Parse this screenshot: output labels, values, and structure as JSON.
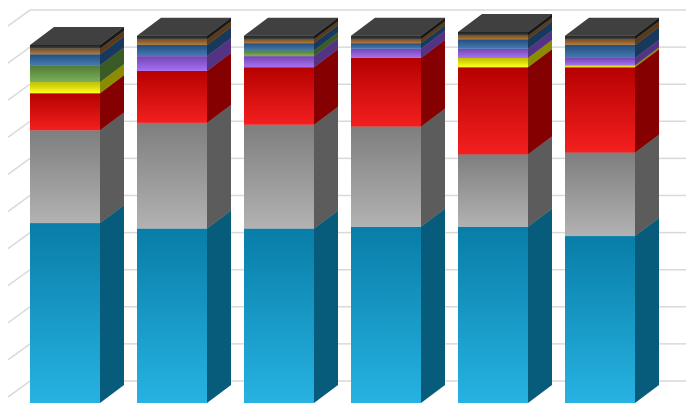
{
  "chart_data": {
    "type": "bar",
    "stacked": true,
    "style": "3d",
    "grid": true,
    "legend": "none",
    "ylim": [
      0,
      100
    ],
    "categories": [
      "",
      "",
      "",
      "",
      "",
      ""
    ],
    "series": [
      {
        "color": "#0aa7de",
        "values": [
          48.5,
          47.0,
          47.0,
          47.5,
          47.5,
          45.0
        ]
      },
      {
        "color": "#a8a8a8",
        "values": [
          25.0,
          28.5,
          28.0,
          27.0,
          19.5,
          22.5
        ]
      },
      {
        "color": "#f20000",
        "values": [
          10.0,
          14.0,
          15.5,
          18.5,
          23.5,
          23.0
        ]
      },
      {
        "color": "#ffff00",
        "values": [
          3.0,
          0.0,
          0.0,
          0.0,
          2.5,
          0.5
        ]
      },
      {
        "color": "#9b5cf0",
        "values": [
          0.0,
          4.0,
          3.0,
          2.5,
          2.5,
          2.0
        ]
      },
      {
        "color": "#6aa544",
        "values": [
          4.5,
          0.0,
          1.5,
          0.0,
          0.0,
          0.0
        ]
      },
      {
        "color": "#2e68a8",
        "values": [
          3.0,
          3.0,
          2.0,
          1.5,
          2.5,
          3.5
        ]
      },
      {
        "color": "#a46a2a",
        "values": [
          1.5,
          1.5,
          1.0,
          1.0,
          1.0,
          1.5
        ]
      },
      {
        "color": "#2b2b2b",
        "values": [
          1.0,
          1.0,
          1.0,
          1.0,
          1.0,
          1.0
        ]
      }
    ]
  }
}
